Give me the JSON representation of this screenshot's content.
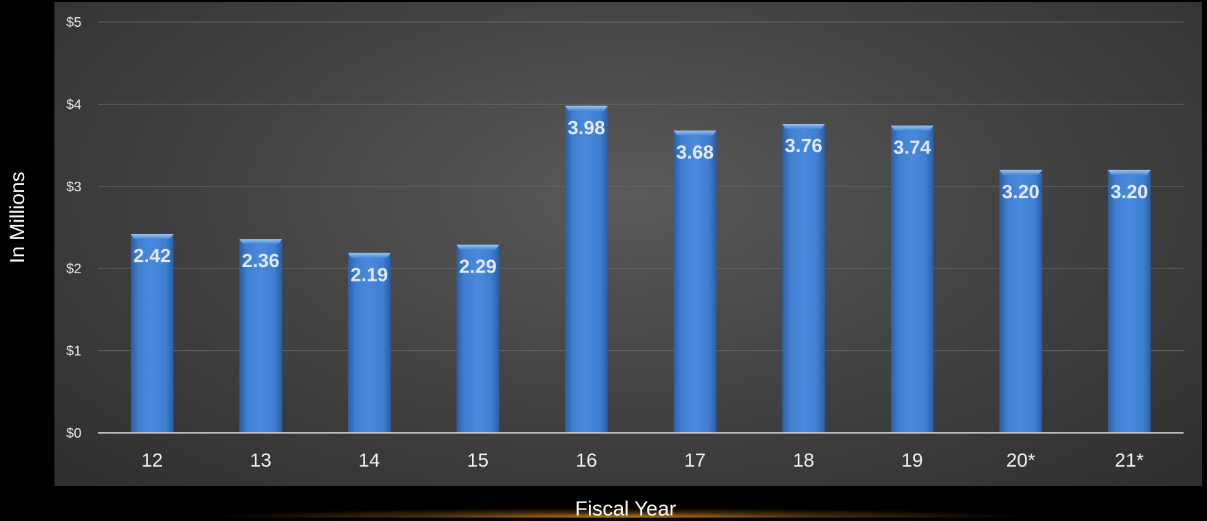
{
  "chart_data": {
    "type": "bar",
    "categories": [
      "12",
      "13",
      "14",
      "15",
      "16",
      "17",
      "18",
      "19",
      "20*",
      "21*"
    ],
    "values": [
      2.42,
      2.36,
      2.19,
      2.29,
      3.98,
      3.68,
      3.76,
      3.74,
      3.2,
      3.2
    ],
    "data_labels": [
      "2.42",
      "2.36",
      "2.19",
      "2.29",
      "3.98",
      "3.68",
      "3.76",
      "3.74",
      "3.20",
      "3.20"
    ],
    "xlabel": "Fiscal Year",
    "ylabel": "In Millions",
    "ylim": [
      0,
      5
    ],
    "yticks": [
      0,
      1,
      2,
      3,
      4,
      5
    ],
    "ytick_labels": [
      "$0",
      "$1",
      "$2",
      "$3",
      "$4",
      "$5"
    ],
    "grid": true,
    "bar_color": "#3f7fd0",
    "background": "#444444"
  }
}
